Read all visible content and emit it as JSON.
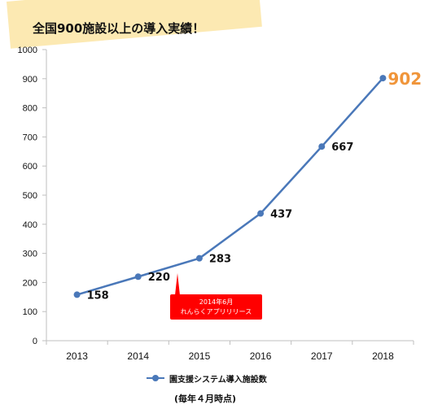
{
  "banner": {
    "text": "全国900施設以上の導入実績！"
  },
  "callout": {
    "line1": "2014年6月",
    "line2": "れんらくアプリリリース"
  },
  "legend": {
    "label": "園支援システム導入施設数"
  },
  "note": "(毎年４月時点)",
  "colors": {
    "series": "#4a78b9",
    "highlight": "#f0953a",
    "callout": "#ff0000",
    "banner": "#fce9b2"
  },
  "chart_data": {
    "type": "line",
    "x": [
      "2013",
      "2014",
      "2015",
      "2016",
      "2017",
      "2018"
    ],
    "series": [
      {
        "name": "園支援システム導入施設数",
        "values": [
          158,
          220,
          283,
          437,
          667,
          902
        ]
      }
    ],
    "data_labels": [
      "158",
      "220",
      "283",
      "437",
      "667",
      "902"
    ],
    "highlight_index": 5,
    "ylim": [
      0,
      1000
    ],
    "yticks": [
      0,
      100,
      200,
      300,
      400,
      500,
      600,
      700,
      800,
      900,
      1000
    ],
    "grid": false,
    "legend_position": "bottom"
  }
}
